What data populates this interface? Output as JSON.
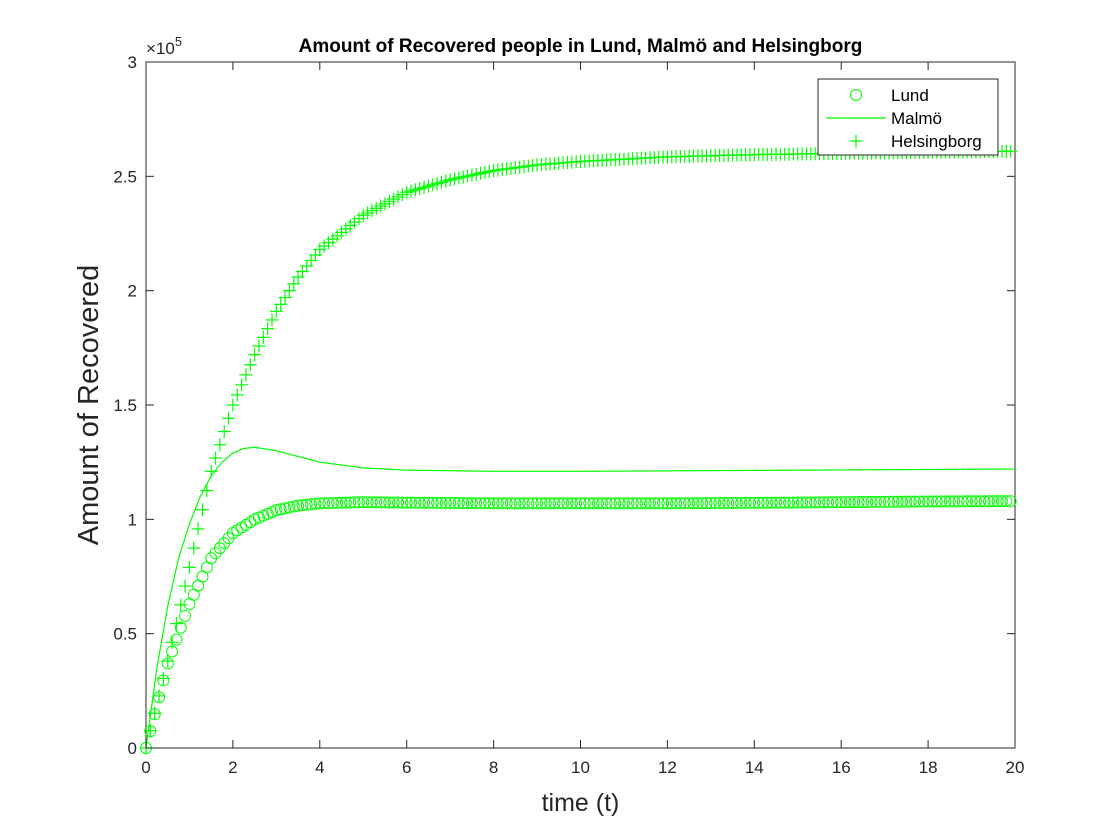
{
  "chart_data": {
    "type": "scatter",
    "title": "Amount of Recovered people in Lund, Malmö and Helsingborg",
    "xlabel": "time (t)",
    "ylabel": "Amount of Recovered",
    "xlim": [
      0,
      20
    ],
    "ylim": [
      0,
      300000
    ],
    "y_exponent": "5",
    "y_exponent_base": "×10",
    "grid": false,
    "legend_position": "top-right",
    "x_ticks": [
      0,
      2,
      4,
      6,
      8,
      10,
      12,
      14,
      16,
      18,
      20
    ],
    "y_ticks": [
      0,
      50000,
      100000,
      150000,
      200000,
      250000,
      300000
    ],
    "x_tick_labels": [
      "0",
      "2",
      "4",
      "6",
      "8",
      "10",
      "12",
      "14",
      "16",
      "18",
      "20"
    ],
    "y_tick_labels": [
      "0",
      "0.5",
      "1",
      "1.5",
      "2",
      "2.5",
      "3"
    ],
    "series_color": "#00ff00",
    "series": [
      {
        "name": "Lund",
        "style": "circle-markers",
        "x": [
          0,
          0.5,
          1,
          1.5,
          2,
          2.5,
          3,
          3.5,
          4,
          5,
          6,
          8,
          10,
          12,
          14,
          16,
          18,
          20
        ],
        "y": [
          0,
          37000,
          63000,
          83000,
          94000,
          100000,
          104000,
          106000,
          107000,
          107500,
          107300,
          107000,
          107000,
          107000,
          107200,
          107500,
          107800,
          108000
        ]
      },
      {
        "name": "Malmö",
        "style": "solid-line",
        "x": [
          0,
          0.25,
          0.5,
          0.75,
          1,
          1.25,
          1.5,
          1.75,
          2,
          2.25,
          2.5,
          3,
          3.5,
          4,
          5,
          6,
          8,
          10,
          12,
          14,
          16,
          18,
          20
        ],
        "y": [
          0,
          35000,
          62000,
          83000,
          98000,
          110000,
          119000,
          125000,
          129000,
          131000,
          131500,
          130000,
          127500,
          125000,
          122500,
          121500,
          121000,
          121000,
          121200,
          121400,
          121600,
          121800,
          122000
        ]
      },
      {
        "name": "Helsingborg",
        "style": "plus-markers",
        "x": [
          0,
          0.5,
          1,
          1.5,
          2,
          2.5,
          3,
          3.5,
          4,
          5,
          6,
          7,
          8,
          9,
          10,
          12,
          14,
          16,
          18,
          20
        ],
        "y": [
          0,
          38000,
          79000,
          121000,
          150000,
          172000,
          191000,
          206000,
          218000,
          233000,
          243000,
          248500,
          252500,
          255000,
          256500,
          258500,
          259500,
          260000,
          260500,
          261000
        ]
      }
    ]
  }
}
